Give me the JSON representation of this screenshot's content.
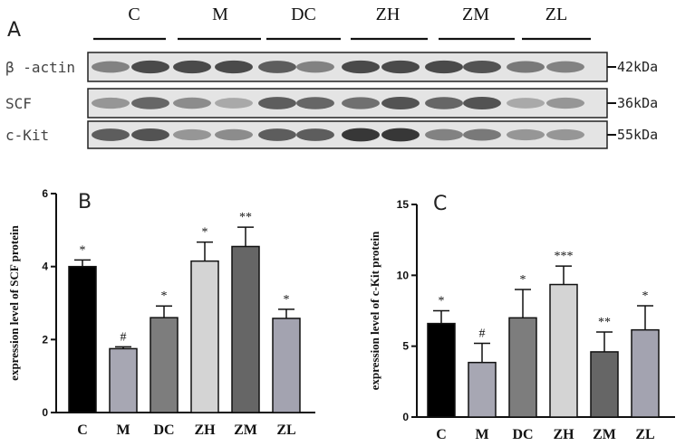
{
  "blot": {
    "panel_label": "A",
    "lanes": [
      "C",
      "M",
      "DC",
      "ZH",
      "ZM",
      "ZL"
    ],
    "rows": [
      {
        "label": "β -actin",
        "kda": "42kDa"
      },
      {
        "label": "SCF",
        "kda": "36kDa"
      },
      {
        "label": "c-Kit",
        "kda": "55kDa"
      }
    ]
  },
  "chart_data": [
    {
      "type": "bar",
      "panel_label": "B",
      "ylabel": "expression level of SCF protein",
      "categories": [
        "C",
        "M",
        "DC",
        "ZH",
        "ZM",
        "ZL"
      ],
      "values": [
        4.0,
        1.75,
        2.6,
        4.15,
        4.55,
        2.58
      ],
      "errors": [
        0.18,
        0.05,
        0.32,
        0.52,
        0.53,
        0.25
      ],
      "significance": [
        "*",
        "#",
        "*",
        "*",
        "**",
        "*"
      ],
      "colors": [
        "#000000",
        "#a7a7b3",
        "#7d7d7d",
        "#d4d4d4",
        "#666666",
        "#a3a3b0"
      ],
      "ylim": [
        0,
        6
      ],
      "yticks": [
        0,
        2,
        4,
        6
      ]
    },
    {
      "type": "bar",
      "panel_label": "C",
      "ylabel": "expression level of c-Kit protein",
      "categories": [
        "C",
        "M",
        "DC",
        "ZH",
        "ZM",
        "ZL"
      ],
      "values": [
        6.6,
        3.85,
        7.0,
        9.35,
        4.6,
        6.15
      ],
      "errors": [
        0.9,
        1.35,
        2.0,
        1.3,
        1.4,
        1.7
      ],
      "significance": [
        "*",
        "#",
        "*",
        "***",
        "**",
        "*"
      ],
      "colors": [
        "#000000",
        "#a7a7b3",
        "#7d7d7d",
        "#d4d4d4",
        "#666666",
        "#a3a3b0"
      ],
      "ylim": [
        0,
        15
      ],
      "yticks": [
        0,
        5,
        10,
        15
      ]
    }
  ]
}
